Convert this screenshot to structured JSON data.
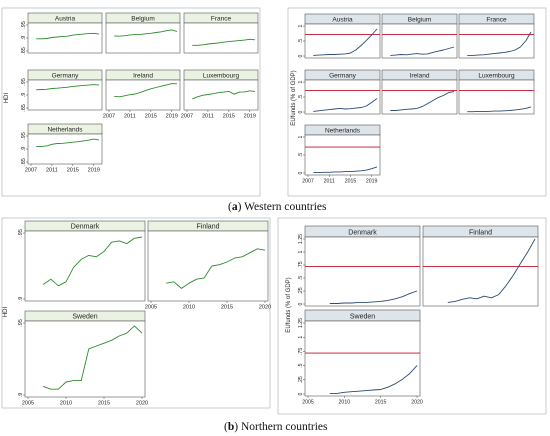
{
  "captions": {
    "a_letter": "a",
    "a_text": "Western countries",
    "b_letter": "b",
    "b_text": "Northern countries"
  },
  "colors": {
    "hdi_line": "#2e8b2e",
    "funds_line": "#2b4a73",
    "threshold_line": "#c0102a",
    "western_header_bg": "#eaf2e2",
    "northern_header_bg": "#eaf2e2",
    "funds_header_bg": "#dde4ea",
    "funds_plot_bg": "#ffffff"
  },
  "chart_data": [
    {
      "id": "west_hdi",
      "type": "line",
      "layout": "small-multiples",
      "ylabel": "HDI",
      "ylim": [
        0.85,
        0.95
      ],
      "yticks": [
        0.85,
        0.9,
        0.95
      ],
      "ytick_labels": [
        ".85",
        ".9",
        ".95"
      ],
      "xlim": [
        2007,
        2020
      ],
      "xticks": [
        2007,
        2011,
        2015,
        2019
      ],
      "xtick_labels": [
        "2007",
        "2011",
        "2015",
        "2019"
      ],
      "x": [
        2008,
        2009,
        2010,
        2011,
        2012,
        2013,
        2014,
        2015,
        2016,
        2017,
        2018,
        2019,
        2020
      ],
      "series": [
        {
          "name": "Austria",
          "values": [
            0.897,
            0.897,
            0.898,
            0.902,
            0.904,
            0.906,
            0.907,
            0.911,
            0.913,
            0.915,
            0.917,
            0.918,
            0.915
          ]
        },
        {
          "name": "Belgium",
          "values": [
            0.908,
            0.907,
            0.909,
            0.912,
            0.913,
            0.914,
            0.916,
            0.918,
            0.921,
            0.924,
            0.928,
            0.931,
            0.925
          ]
        },
        {
          "name": "France",
          "values": [
            0.872,
            0.872,
            0.874,
            0.877,
            0.879,
            0.881,
            0.884,
            0.886,
            0.888,
            0.89,
            0.892,
            0.895,
            0.893
          ]
        },
        {
          "name": "Germany",
          "values": [
            0.92,
            0.921,
            0.922,
            0.925,
            0.926,
            0.928,
            0.93,
            0.933,
            0.935,
            0.937,
            0.938,
            0.94,
            0.938
          ]
        },
        {
          "name": "Ireland",
          "values": [
            0.895,
            0.893,
            0.897,
            0.901,
            0.904,
            0.91,
            0.917,
            0.924,
            0.929,
            0.934,
            0.939,
            0.944,
            0.943
          ]
        },
        {
          "name": "Luxembourg",
          "values": [
            0.885,
            0.893,
            0.899,
            0.902,
            0.905,
            0.909,
            0.911,
            0.914,
            0.903,
            0.911,
            0.912,
            0.916,
            0.913
          ]
        },
        {
          "name": "Netherlands",
          "values": [
            0.91,
            0.91,
            0.912,
            0.918,
            0.921,
            0.922,
            0.924,
            0.926,
            0.928,
            0.931,
            0.934,
            0.938,
            0.935
          ]
        }
      ]
    },
    {
      "id": "west_funds",
      "type": "line",
      "layout": "small-multiples",
      "ylabel": "EUfunds (% of GDP)",
      "ylim": [
        0,
        1
      ],
      "yticks": [
        0,
        0.5,
        1
      ],
      "ytick_labels": [
        "0",
        ".5",
        "1"
      ],
      "xlim": [
        2007,
        2020
      ],
      "xticks": [
        2007,
        2011,
        2015,
        2019
      ],
      "xtick_labels": [
        "2007",
        "2011",
        "2015",
        "2019"
      ],
      "reference_line": 0.72,
      "x": [
        2008,
        2009,
        2010,
        2011,
        2012,
        2013,
        2014,
        2015,
        2016,
        2017,
        2018,
        2019,
        2020
      ],
      "series": [
        {
          "name": "Austria",
          "values": [
            0.02,
            0.03,
            0.04,
            0.05,
            0.05,
            0.06,
            0.07,
            0.1,
            0.2,
            0.35,
            0.52,
            0.7,
            0.9
          ]
        },
        {
          "name": "Belgium",
          "values": [
            0.02,
            0.03,
            0.05,
            0.04,
            0.06,
            0.08,
            0.06,
            0.07,
            0.12,
            0.16,
            0.2,
            0.25,
            0.3
          ]
        },
        {
          "name": "France",
          "values": [
            0.02,
            0.02,
            0.03,
            0.04,
            0.06,
            0.08,
            0.1,
            0.12,
            0.15,
            0.2,
            0.3,
            0.5,
            0.8
          ]
        },
        {
          "name": "Germany",
          "values": [
            0.02,
            0.04,
            0.06,
            0.08,
            0.1,
            0.12,
            0.1,
            0.11,
            0.13,
            0.15,
            0.2,
            0.32,
            0.45
          ]
        },
        {
          "name": "Ireland",
          "values": [
            0.05,
            0.05,
            0.07,
            0.09,
            0.1,
            0.12,
            0.18,
            0.28,
            0.38,
            0.48,
            0.55,
            0.65,
            0.68
          ]
        },
        {
          "name": "Luxembourg",
          "values": [
            0.01,
            0.01,
            0.02,
            0.02,
            0.02,
            0.03,
            0.03,
            0.04,
            0.05,
            0.07,
            0.09,
            0.12,
            0.17
          ]
        },
        {
          "name": "Netherlands",
          "values": [
            0.01,
            0.01,
            0.02,
            0.02,
            0.03,
            0.03,
            0.04,
            0.04,
            0.05,
            0.06,
            0.08,
            0.12,
            0.17
          ]
        }
      ]
    },
    {
      "id": "north_hdi",
      "type": "line",
      "layout": "small-multiples",
      "ylabel": "HDI",
      "ylim": [
        0.9,
        0.95
      ],
      "yticks": [
        0.9,
        0.95
      ],
      "ytick_labels": [
        ".9",
        ".95"
      ],
      "xlim": [
        2005,
        2020
      ],
      "xticks": [
        2005,
        2010,
        2015,
        2020
      ],
      "xtick_labels": [
        "2005",
        "2010",
        "2015",
        "2020"
      ],
      "x": [
        2007,
        2008,
        2009,
        2010,
        2011,
        2012,
        2013,
        2014,
        2015,
        2016,
        2017,
        2018,
        2019,
        2020
      ],
      "series": [
        {
          "name": "Denmark",
          "values": [
            0.911,
            0.915,
            0.91,
            0.913,
            0.924,
            0.93,
            0.933,
            0.932,
            0.936,
            0.943,
            0.944,
            0.942,
            0.946,
            0.947
          ]
        },
        {
          "name": "Finland",
          "values": [
            0.912,
            0.913,
            0.908,
            0.912,
            0.915,
            0.916,
            0.925,
            0.926,
            0.928,
            0.931,
            0.932,
            0.935,
            0.938,
            0.937
          ]
        },
        {
          "name": "Sweden",
          "values": [
            0.906,
            0.904,
            0.904,
            0.909,
            0.91,
            0.91,
            0.932,
            0.934,
            0.936,
            0.938,
            0.941,
            0.943,
            0.948,
            0.943
          ]
        }
      ]
    },
    {
      "id": "north_funds",
      "type": "line",
      "layout": "small-multiples",
      "ylabel": "EUfunds (% of GDP)",
      "ylim": [
        0,
        1.25
      ],
      "yticks": [
        0,
        0.25,
        0.5,
        0.75,
        1,
        1.25
      ],
      "ytick_labels": [
        "0",
        ".25",
        ".5",
        ".75",
        "1",
        "1.25"
      ],
      "xlim": [
        2005,
        2020
      ],
      "xticks": [
        2005,
        2010,
        2015,
        2020
      ],
      "xtick_labels": [
        "2005",
        "2010",
        "2015",
        "2020"
      ],
      "reference_line": 0.72,
      "x": [
        2008,
        2009,
        2010,
        2011,
        2012,
        2013,
        2014,
        2015,
        2016,
        2017,
        2018,
        2019,
        2020
      ],
      "series": [
        {
          "name": "Denmark",
          "values": [
            0.01,
            0.01,
            0.02,
            0.02,
            0.03,
            0.03,
            0.04,
            0.05,
            0.07,
            0.1,
            0.14,
            0.2,
            0.25
          ]
        },
        {
          "name": "Finland",
          "values": [
            0.03,
            0.05,
            0.09,
            0.12,
            0.1,
            0.15,
            0.12,
            0.18,
            0.35,
            0.55,
            0.78,
            1.0,
            1.25
          ]
        },
        {
          "name": "Sweden",
          "values": [
            0.01,
            0.01,
            0.03,
            0.04,
            0.05,
            0.06,
            0.07,
            0.08,
            0.12,
            0.18,
            0.26,
            0.36,
            0.5
          ]
        }
      ]
    }
  ]
}
